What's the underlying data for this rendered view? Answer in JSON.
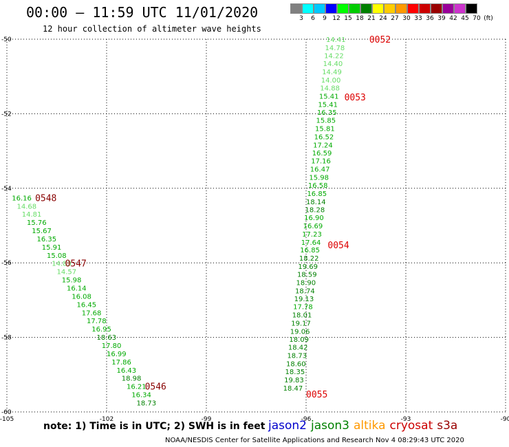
{
  "header": {
    "title": "00:00 – 11:59 UTC 11/01/2020",
    "subtitle": "12 hour collection of altimeter wave heights"
  },
  "colorbar": {
    "labels": [
      "3",
      "6",
      "9",
      "12",
      "15",
      "18",
      "21",
      "24",
      "27",
      "30",
      "33",
      "36",
      "39",
      "42",
      "45",
      "70",
      "(ft)"
    ],
    "colors": [
      "#808080",
      "#00ffff",
      "#00c8ff",
      "#0000ff",
      "#00ff00",
      "#00cc00",
      "#008000",
      "#ffff00",
      "#ffcc00",
      "#ff9900",
      "#ff0000",
      "#cc0000",
      "#990000",
      "#990099",
      "#cc33cc",
      "#000000"
    ]
  },
  "note": "note: 1) Time is in UTC; 2) SWH is in feet",
  "satellites": [
    {
      "name": "jason2",
      "color": "#0000cc"
    },
    {
      "name": "jason3",
      "color": "#008000"
    },
    {
      "name": "altika",
      "color": "#ff9900"
    },
    {
      "name": "cryosat",
      "color": "#cc0000"
    },
    {
      "name": "s3a",
      "color": "#990000"
    }
  ],
  "footer": "NOAA/NESDIS Center for Satellite Applications and Research   Nov  4 08:29:43 UTC 2020",
  "chart_data": {
    "type": "scatter",
    "xlim": [
      -105,
      -90
    ],
    "ylim": [
      -60,
      -50
    ],
    "x_ticks": [
      -105,
      -102,
      -99,
      -96,
      -93,
      -90
    ],
    "y_ticks": [
      -50,
      -52,
      -54,
      -56,
      -58,
      -60
    ],
    "grid": true,
    "track_east": {
      "points": [
        {
          "x": -95.4,
          "y": -50.0,
          "v": "14.41",
          "c": "#66dd66"
        },
        {
          "x": -95.43,
          "y": -50.22,
          "v": "14.78",
          "c": "#66dd66"
        },
        {
          "x": -95.46,
          "y": -50.43,
          "v": "14.22",
          "c": "#66dd66"
        },
        {
          "x": -95.49,
          "y": -50.65,
          "v": "14.40",
          "c": "#66dd66"
        },
        {
          "x": -95.52,
          "y": -50.87,
          "v": "14.49",
          "c": "#66dd66"
        },
        {
          "x": -95.55,
          "y": -51.09,
          "v": "14.00",
          "c": "#66dd66"
        },
        {
          "x": -95.58,
          "y": -51.3,
          "v": "14.88",
          "c": "#66dd66"
        },
        {
          "x": -95.61,
          "y": -51.52,
          "v": "15.41",
          "c": "#00aa00"
        },
        {
          "x": -95.64,
          "y": -51.74,
          "v": "15.41",
          "c": "#00aa00"
        },
        {
          "x": -95.67,
          "y": -51.96,
          "v": "16.35",
          "c": "#00aa00"
        },
        {
          "x": -95.7,
          "y": -52.17,
          "v": "15.85",
          "c": "#00aa00"
        },
        {
          "x": -95.73,
          "y": -52.39,
          "v": "15.81",
          "c": "#00aa00"
        },
        {
          "x": -95.76,
          "y": -52.61,
          "v": "16.52",
          "c": "#00aa00"
        },
        {
          "x": -95.79,
          "y": -52.83,
          "v": "17.24",
          "c": "#00aa00"
        },
        {
          "x": -95.82,
          "y": -53.04,
          "v": "16.59",
          "c": "#00aa00"
        },
        {
          "x": -95.85,
          "y": -53.26,
          "v": "17.16",
          "c": "#00aa00"
        },
        {
          "x": -95.88,
          "y": -53.48,
          "v": "16.47",
          "c": "#00aa00"
        },
        {
          "x": -95.91,
          "y": -53.7,
          "v": "15.98",
          "c": "#00aa00"
        },
        {
          "x": -95.94,
          "y": -53.91,
          "v": "16.58",
          "c": "#00aa00"
        },
        {
          "x": -95.97,
          "y": -54.13,
          "v": "16.85",
          "c": "#00aa00"
        },
        {
          "x": -96.0,
          "y": -54.35,
          "v": "18.14",
          "c": "#008000"
        },
        {
          "x": -96.03,
          "y": -54.57,
          "v": "18.28",
          "c": "#008000"
        },
        {
          "x": -96.06,
          "y": -54.78,
          "v": "16.90",
          "c": "#00aa00"
        },
        {
          "x": -96.09,
          "y": -55.0,
          "v": "16.69",
          "c": "#00aa00"
        },
        {
          "x": -96.12,
          "y": -55.22,
          "v": "17.23",
          "c": "#00aa00"
        },
        {
          "x": -96.15,
          "y": -55.44,
          "v": "17.64",
          "c": "#00aa00"
        },
        {
          "x": -96.18,
          "y": -55.65,
          "v": "16.85",
          "c": "#00aa00"
        },
        {
          "x": -96.21,
          "y": -55.87,
          "v": "18.22",
          "c": "#008000"
        },
        {
          "x": -96.24,
          "y": -56.09,
          "v": "19.69",
          "c": "#008000"
        },
        {
          "x": -96.27,
          "y": -56.3,
          "v": "18.59",
          "c": "#008000"
        },
        {
          "x": -96.3,
          "y": -56.52,
          "v": "18.90",
          "c": "#008000"
        },
        {
          "x": -96.33,
          "y": -56.74,
          "v": "18.74",
          "c": "#008000"
        },
        {
          "x": -96.36,
          "y": -56.96,
          "v": "19.13",
          "c": "#008000"
        },
        {
          "x": -96.39,
          "y": -57.17,
          "v": "17.78",
          "c": "#00aa00"
        },
        {
          "x": -96.42,
          "y": -57.39,
          "v": "18.01",
          "c": "#008000"
        },
        {
          "x": -96.45,
          "y": -57.61,
          "v": "19.17",
          "c": "#008000"
        },
        {
          "x": -96.48,
          "y": -57.83,
          "v": "19.06",
          "c": "#008000"
        },
        {
          "x": -96.51,
          "y": -58.04,
          "v": "18.09",
          "c": "#008000"
        },
        {
          "x": -96.54,
          "y": -58.26,
          "v": "18.42",
          "c": "#008000"
        },
        {
          "x": -96.57,
          "y": -58.48,
          "v": "18.73",
          "c": "#008000"
        },
        {
          "x": -96.6,
          "y": -58.7,
          "v": "18.60",
          "c": "#008000"
        },
        {
          "x": -96.63,
          "y": -58.91,
          "v": "18.35",
          "c": "#008000"
        },
        {
          "x": -96.66,
          "y": -59.13,
          "v": "19.83",
          "c": "#008000"
        },
        {
          "x": -96.69,
          "y": -59.35,
          "v": "18.47",
          "c": "#008000"
        }
      ],
      "times": [
        {
          "x": -94.1,
          "y": -50.0,
          "t": "0052",
          "c": "#dd0000"
        },
        {
          "x": -94.85,
          "y": -51.55,
          "t": "0053",
          "c": "#dd0000"
        },
        {
          "x": -95.35,
          "y": -55.52,
          "t": "0054",
          "c": "#dd0000"
        },
        {
          "x": -96.0,
          "y": -59.52,
          "t": "0055",
          "c": "#dd0000"
        }
      ]
    },
    "track_west": {
      "points": [
        {
          "x": -104.85,
          "y": -54.25,
          "v": "16.16",
          "c": "#00aa00"
        },
        {
          "x": -104.7,
          "y": -54.47,
          "v": "14.68",
          "c": "#66dd66"
        },
        {
          "x": -104.55,
          "y": -54.69,
          "v": "14.81",
          "c": "#66dd66"
        },
        {
          "x": -104.4,
          "y": -54.91,
          "v": "15.76",
          "c": "#00aa00"
        },
        {
          "x": -104.25,
          "y": -55.13,
          "v": "15.67",
          "c": "#00aa00"
        },
        {
          "x": -104.1,
          "y": -55.35,
          "v": "16.35",
          "c": "#00aa00"
        },
        {
          "x": -103.95,
          "y": -55.57,
          "v": "15.91",
          "c": "#00aa00"
        },
        {
          "x": -103.8,
          "y": -55.79,
          "v": "15.08",
          "c": "#00aa00"
        },
        {
          "x": -103.65,
          "y": -56.01,
          "v": "14.83",
          "c": "#66dd66"
        },
        {
          "x": -103.5,
          "y": -56.23,
          "v": "14.57",
          "c": "#66dd66"
        },
        {
          "x": -103.35,
          "y": -56.45,
          "v": "15.98",
          "c": "#00aa00"
        },
        {
          "x": -103.2,
          "y": -56.67,
          "v": "16.14",
          "c": "#00aa00"
        },
        {
          "x": -103.05,
          "y": -56.89,
          "v": "16.08",
          "c": "#00aa00"
        },
        {
          "x": -102.9,
          "y": -57.11,
          "v": "16.45",
          "c": "#00aa00"
        },
        {
          "x": -102.75,
          "y": -57.33,
          "v": "17.68",
          "c": "#00aa00"
        },
        {
          "x": -102.6,
          "y": -57.55,
          "v": "17.78",
          "c": "#00aa00"
        },
        {
          "x": -102.45,
          "y": -57.77,
          "v": "16.95",
          "c": "#00aa00"
        },
        {
          "x": -102.3,
          "y": -57.99,
          "v": "18.63",
          "c": "#008000"
        },
        {
          "x": -102.15,
          "y": -58.21,
          "v": "17.80",
          "c": "#00aa00"
        },
        {
          "x": -102.0,
          "y": -58.43,
          "v": "16.99",
          "c": "#00aa00"
        },
        {
          "x": -101.85,
          "y": -58.65,
          "v": "17.86",
          "c": "#00aa00"
        },
        {
          "x": -101.7,
          "y": -58.87,
          "v": "16.43",
          "c": "#00aa00"
        },
        {
          "x": -101.55,
          "y": -59.09,
          "v": "18.98",
          "c": "#008000"
        },
        {
          "x": -101.4,
          "y": -59.31,
          "v": "16.21",
          "c": "#00aa00"
        },
        {
          "x": -101.25,
          "y": -59.53,
          "v": "16.34",
          "c": "#00aa00"
        },
        {
          "x": -101.1,
          "y": -59.75,
          "v": "18.73",
          "c": "#008000"
        }
      ],
      "times": [
        {
          "x": -104.15,
          "y": -54.25,
          "t": "0548",
          "c": "#880000"
        },
        {
          "x": -103.25,
          "y": -56.01,
          "t": "0547",
          "c": "#880000"
        },
        {
          "x": -100.85,
          "y": -59.31,
          "t": "0546",
          "c": "#880000"
        }
      ]
    }
  }
}
